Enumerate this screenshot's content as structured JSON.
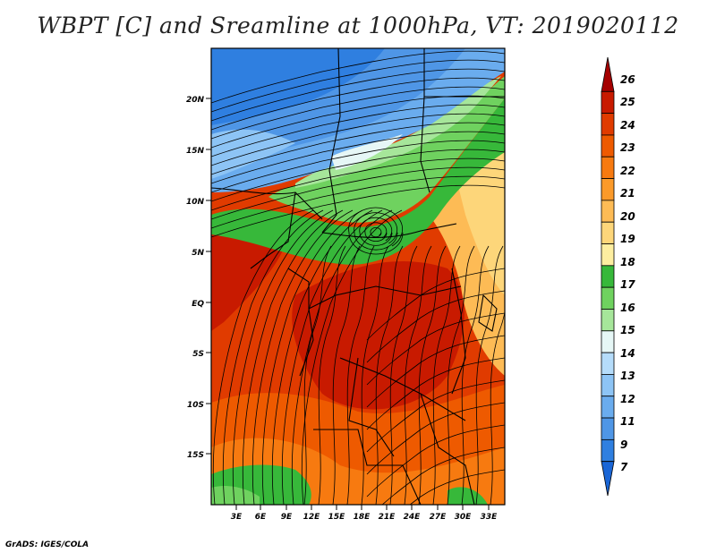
{
  "title": "WBPT [C] and Sreamline at 1000hPa, VT: 2019020112",
  "footer": "GrADS: IGES/COLA",
  "map": {
    "lat_labels": [
      "20N",
      "15N",
      "10N",
      "5N",
      "EQ",
      "5S",
      "10S",
      "15S"
    ],
    "lon_labels": [
      "3E",
      "6E",
      "9E",
      "12E",
      "15E",
      "18E",
      "21E",
      "24E",
      "27E",
      "30E",
      "33E"
    ]
  },
  "colorbar": {
    "levels": [
      "26",
      "25",
      "24",
      "23",
      "22",
      "21",
      "20",
      "19",
      "18",
      "17",
      "16",
      "15",
      "14",
      "13",
      "12",
      "11",
      "9",
      "7"
    ],
    "colors": [
      "#a50000",
      "#c81a00",
      "#e03b00",
      "#ee5a00",
      "#f77a10",
      "#fb9a2a",
      "#fdbb55",
      "#fdd67a",
      "#fdeea0",
      "#37b83a",
      "#6fd25f",
      "#a6e69a",
      "#e6f7f6",
      "#b5dcfa",
      "#8dc4f5",
      "#6aacee",
      "#4f96e6",
      "#2f7fe0",
      "#1a66d6"
    ]
  }
}
